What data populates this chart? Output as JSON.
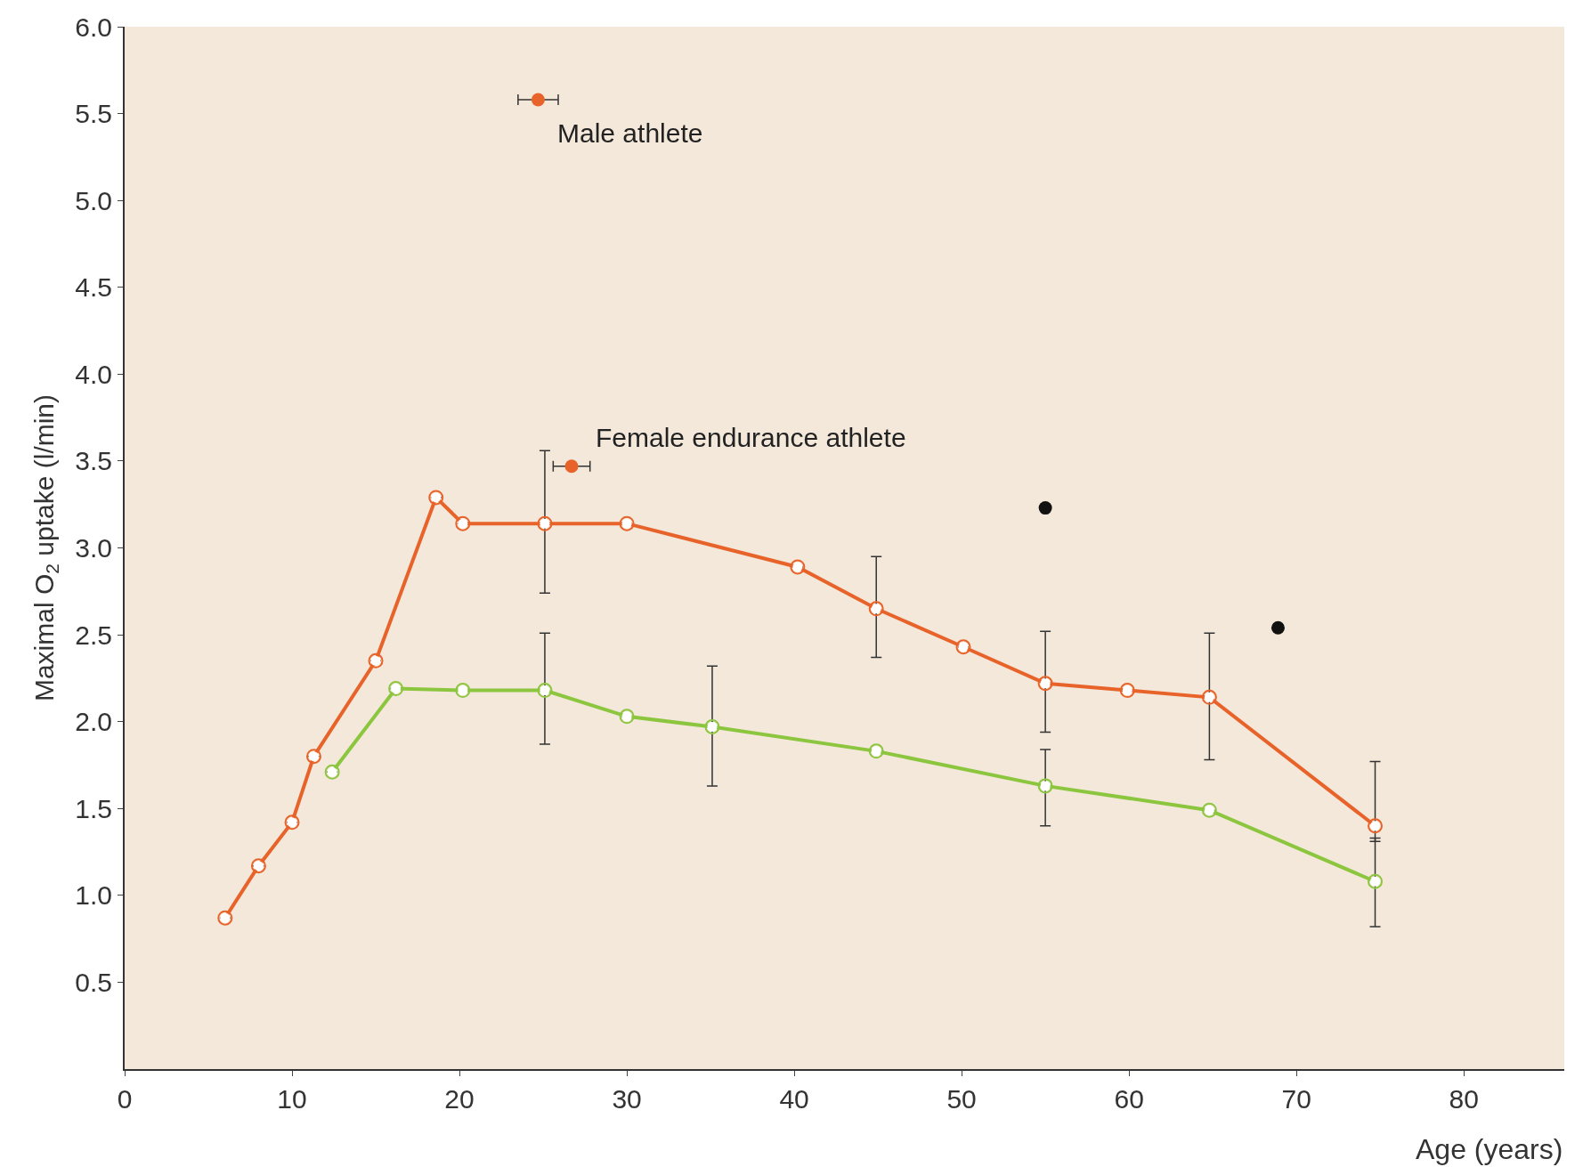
{
  "chart_data": {
    "type": "line",
    "xlabel": "Age (years)",
    "ylabel": "Maximal O$_{2}$ uptake (l/min)",
    "xlim": [
      0,
      86
    ],
    "xticks": [
      0,
      10,
      20,
      30,
      40,
      50,
      60,
      70,
      80
    ],
    "ylim": [
      0,
      6.0
    ],
    "yticks": [
      0.5,
      {
        "value": 1,
        "label": "1.0"
      },
      1.5,
      {
        "value": 2,
        "label": "2.0"
      },
      2.5,
      {
        "value": 3,
        "label": "3.0"
      },
      3.5,
      {
        "value": 4,
        "label": "4.0"
      },
      4.5,
      {
        "value": 5,
        "label": "5.0"
      },
      5.5,
      {
        "value": 6,
        "label": "6.0"
      }
    ],
    "grid": false,
    "marker": "circle",
    "line_style": "solid",
    "series": [
      {
        "color": "#e8632a",
        "x": [
          6,
          8,
          10,
          11.3,
          15,
          18.6,
          20.2,
          25.1,
          30,
          40.2,
          44.9,
          50.1,
          55,
          59.9,
          64.8,
          74.7
        ],
        "values": [
          0.87,
          1.17,
          1.42,
          1.8,
          2.35,
          3.29,
          3.14,
          3.14,
          3.14,
          2.89,
          2.65,
          2.43,
          2.22,
          2.18,
          2.14,
          1.4
        ],
        "errors": [
          null,
          null,
          null,
          null,
          null,
          null,
          null,
          [
            2.74,
            3.56
          ],
          null,
          null,
          [
            2.37,
            2.95
          ],
          null,
          [
            1.94,
            2.52
          ],
          null,
          [
            1.78,
            2.51
          ],
          [
            1.31,
            1.77
          ]
        ]
      },
      {
        "color": "#8cc63f",
        "x": [
          12.4,
          16.2,
          20.2,
          25.1,
          30,
          35.1,
          44.9,
          55,
          64.8,
          74.7
        ],
        "values": [
          1.71,
          2.19,
          2.18,
          2.18,
          2.03,
          1.97,
          1.83,
          1.63,
          1.49,
          1.08
        ],
        "errors": [
          null,
          null,
          null,
          [
            1.87,
            2.51
          ],
          null,
          [
            1.63,
            2.32
          ],
          null,
          [
            1.4,
            1.84
          ],
          null,
          [
            0.82,
            1.33
          ]
        ]
      },
      {
        "type": "scatter",
        "color": "#e8632a",
        "x": [
          24.7,
          26.7
        ],
        "values": [
          5.58,
          3.47
        ],
        "xerrors": [
          1.2,
          1.1
        ]
      },
      {
        "type": "scatter",
        "color": "#111111",
        "x": [
          55,
          68.9
        ],
        "values": [
          3.23,
          2.54
        ]
      }
    ],
    "annotations": [
      {
        "text": "Male athlete",
        "x": 24.7,
        "y": 5.58
      },
      {
        "text": "Female endurance athlete",
        "x": 26.7,
        "y": 3.47
      }
    ]
  }
}
